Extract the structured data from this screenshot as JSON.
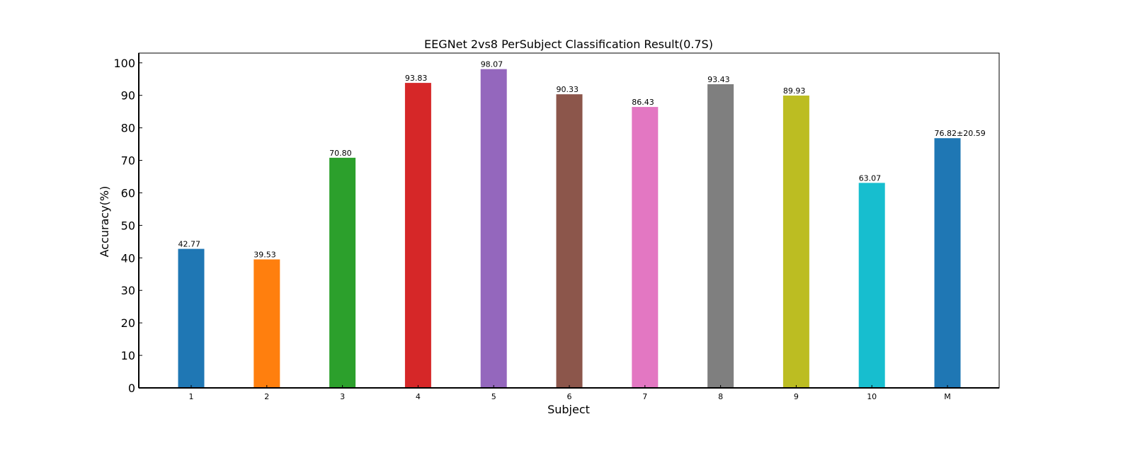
{
  "chart_data": {
    "type": "bar",
    "title": "EEGNet 2vs8 PerSubject Classification Result(0.7S)",
    "xlabel": "Subject",
    "ylabel": "Accuracy(%)",
    "categories": [
      "1",
      "2",
      "3",
      "4",
      "5",
      "6",
      "7",
      "8",
      "9",
      "10",
      "M"
    ],
    "values": [
      42.77,
      39.53,
      70.8,
      93.83,
      98.07,
      90.33,
      86.43,
      93.43,
      89.93,
      63.07,
      76.82
    ],
    "data_labels": [
      "42.77",
      "39.53",
      "70.80",
      "93.83",
      "98.07",
      "90.33",
      "86.43",
      "93.43",
      "89.93",
      "63.07",
      "76.82±20.59"
    ],
    "bar_colors": [
      "#1f77b4",
      "#ff7f0e",
      "#2ca02c",
      "#d62728",
      "#9467bd",
      "#8c564b",
      "#e377c2",
      "#7f7f7f",
      "#bcbd22",
      "#17becf",
      "#1f77b4"
    ],
    "label_colors": [
      "#000000",
      "#000000",
      "#000000",
      "#000000",
      "#000000",
      "#000000",
      "#000000",
      "#000000",
      "#000000",
      "#000000",
      "#ff0000"
    ],
    "yticks": [
      "0",
      "10",
      "20",
      "30",
      "40",
      "50",
      "60",
      "70",
      "80",
      "90",
      "100"
    ],
    "ylim": [
      0,
      103
    ],
    "grid": false,
    "legend": "none"
  }
}
